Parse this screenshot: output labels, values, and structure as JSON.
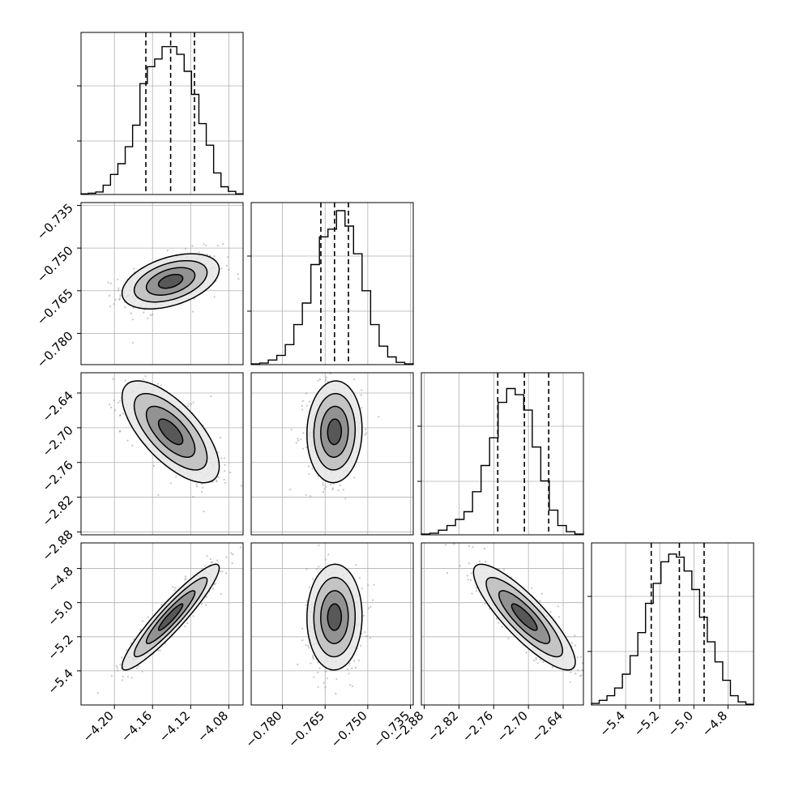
{
  "chart_data": {
    "type": "corner",
    "parameters": [
      {
        "range": [
          -4.235,
          -4.065
        ],
        "ticks": [
          "-4.20",
          "-4.16",
          "-4.12",
          "-4.08"
        ],
        "quantiles": [
          -4.167,
          -4.141,
          -4.116
        ],
        "hist": [
          0.004,
          0.008,
          0.016,
          0.06,
          0.13,
          0.2,
          0.31,
          0.45,
          0.72,
          0.83,
          0.88,
          0.96,
          0.96,
          0.91,
          0.8,
          0.65,
          0.46,
          0.32,
          0.14,
          0.05,
          0.02,
          0.004
        ]
      },
      {
        "range": [
          -0.791,
          -0.734
        ],
        "ticks": [
          "-0.780",
          "-0.765",
          "-0.750",
          "-0.735"
        ],
        "quantiles": [
          -0.7665,
          -0.7617,
          -0.7568
        ],
        "hist": [
          0.005,
          0.01,
          0.03,
          0.06,
          0.13,
          0.26,
          0.4,
          0.65,
          0.83,
          0.88,
          1.0,
          0.9,
          0.72,
          0.48,
          0.26,
          0.12,
          0.05,
          0.015,
          0.005
        ]
      },
      {
        "range": [
          -2.885,
          -2.605
        ],
        "ticks": [
          "-2.88",
          "-2.82",
          "-2.76",
          "-2.70",
          "-2.64"
        ],
        "quantiles": [
          -2.753,
          -2.707,
          -2.665
        ],
        "hist": [
          0.005,
          0.01,
          0.03,
          0.06,
          0.1,
          0.15,
          0.28,
          0.45,
          0.63,
          0.86,
          0.95,
          0.91,
          0.81,
          0.57,
          0.35,
          0.16,
          0.06,
          0.02,
          0.005
        ]
      },
      {
        "range": [
          -5.6,
          -4.65
        ],
        "ticks": [
          "-5.4",
          "-5.2",
          "-5.0",
          "-4.8"
        ],
        "quantiles": [
          -5.25,
          -5.085,
          -4.94
        ],
        "hist": [
          0.01,
          0.03,
          0.06,
          0.11,
          0.2,
          0.32,
          0.47,
          0.66,
          0.79,
          0.93,
          0.98,
          0.96,
          0.87,
          0.75,
          0.57,
          0.41,
          0.28,
          0.16,
          0.06,
          0.02,
          0.005
        ]
      }
    ],
    "correlations": [
      [
        1,
        0.43,
        -0.68,
        0.93
      ],
      [
        0.43,
        1,
        0.05,
        0.02
      ],
      [
        -0.68,
        0.05,
        1,
        -0.85
      ],
      [
        0.93,
        0.02,
        -0.85,
        1
      ]
    ],
    "contour_levels": [
      0.5,
      1.0,
      1.5,
      2.0
    ],
    "grid": true,
    "hist_color": "#000000",
    "point_color": "#808080"
  }
}
